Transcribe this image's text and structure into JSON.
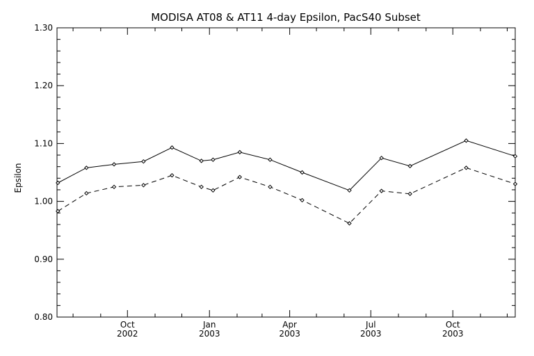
{
  "chart_data": {
    "type": "line",
    "title": "MODISA AT08 & AT11 4-day Epsilon, PacS40 Subset",
    "xlabel": "",
    "ylabel": "Epsilon",
    "ylim": [
      0.8,
      1.3
    ],
    "xlim": [
      "2002-07-14",
      "2003-12-10"
    ],
    "yticks": [
      "0.80",
      "0.90",
      "1.00",
      "1.10",
      "1.20",
      "1.30"
    ],
    "xticks": [
      {
        "date": "2002-10-01",
        "month": "Oct",
        "year": "2002"
      },
      {
        "date": "2003-01-01",
        "month": "Jan",
        "year": "2003"
      },
      {
        "date": "2003-04-01",
        "month": "Apr",
        "year": "2003"
      },
      {
        "date": "2003-07-01",
        "month": "Jul",
        "year": "2003"
      },
      {
        "date": "2003-10-01",
        "month": "Oct",
        "year": "2003"
      }
    ],
    "grid": false,
    "series": [
      {
        "style": "solid",
        "color": "#000000",
        "x": [
          "2002-07-15",
          "2002-08-16",
          "2002-09-16",
          "2002-10-19",
          "2002-11-20",
          "2002-12-23",
          "2003-01-05",
          "2003-02-04",
          "2003-03-10",
          "2003-04-15",
          "2003-06-07",
          "2003-07-13",
          "2003-08-14",
          "2003-10-16",
          "2003-12-10"
        ],
        "values": [
          1.032,
          1.058,
          1.064,
          1.069,
          1.093,
          1.07,
          1.072,
          1.085,
          1.072,
          1.05,
          1.019,
          1.075,
          1.061,
          1.105,
          1.078
        ]
      },
      {
        "style": "dashed",
        "color": "#000000",
        "x": [
          "2002-07-15",
          "2002-08-16",
          "2002-09-16",
          "2002-10-19",
          "2002-11-20",
          "2002-12-23",
          "2003-01-05",
          "2003-02-04",
          "2003-03-10",
          "2003-04-15",
          "2003-06-07",
          "2003-07-13",
          "2003-08-14",
          "2003-10-16",
          "2003-12-10"
        ],
        "values": [
          0.983,
          1.014,
          1.025,
          1.028,
          1.045,
          1.025,
          1.019,
          1.042,
          1.025,
          1.002,
          0.962,
          1.018,
          1.013,
          1.058,
          1.03
        ]
      }
    ]
  }
}
